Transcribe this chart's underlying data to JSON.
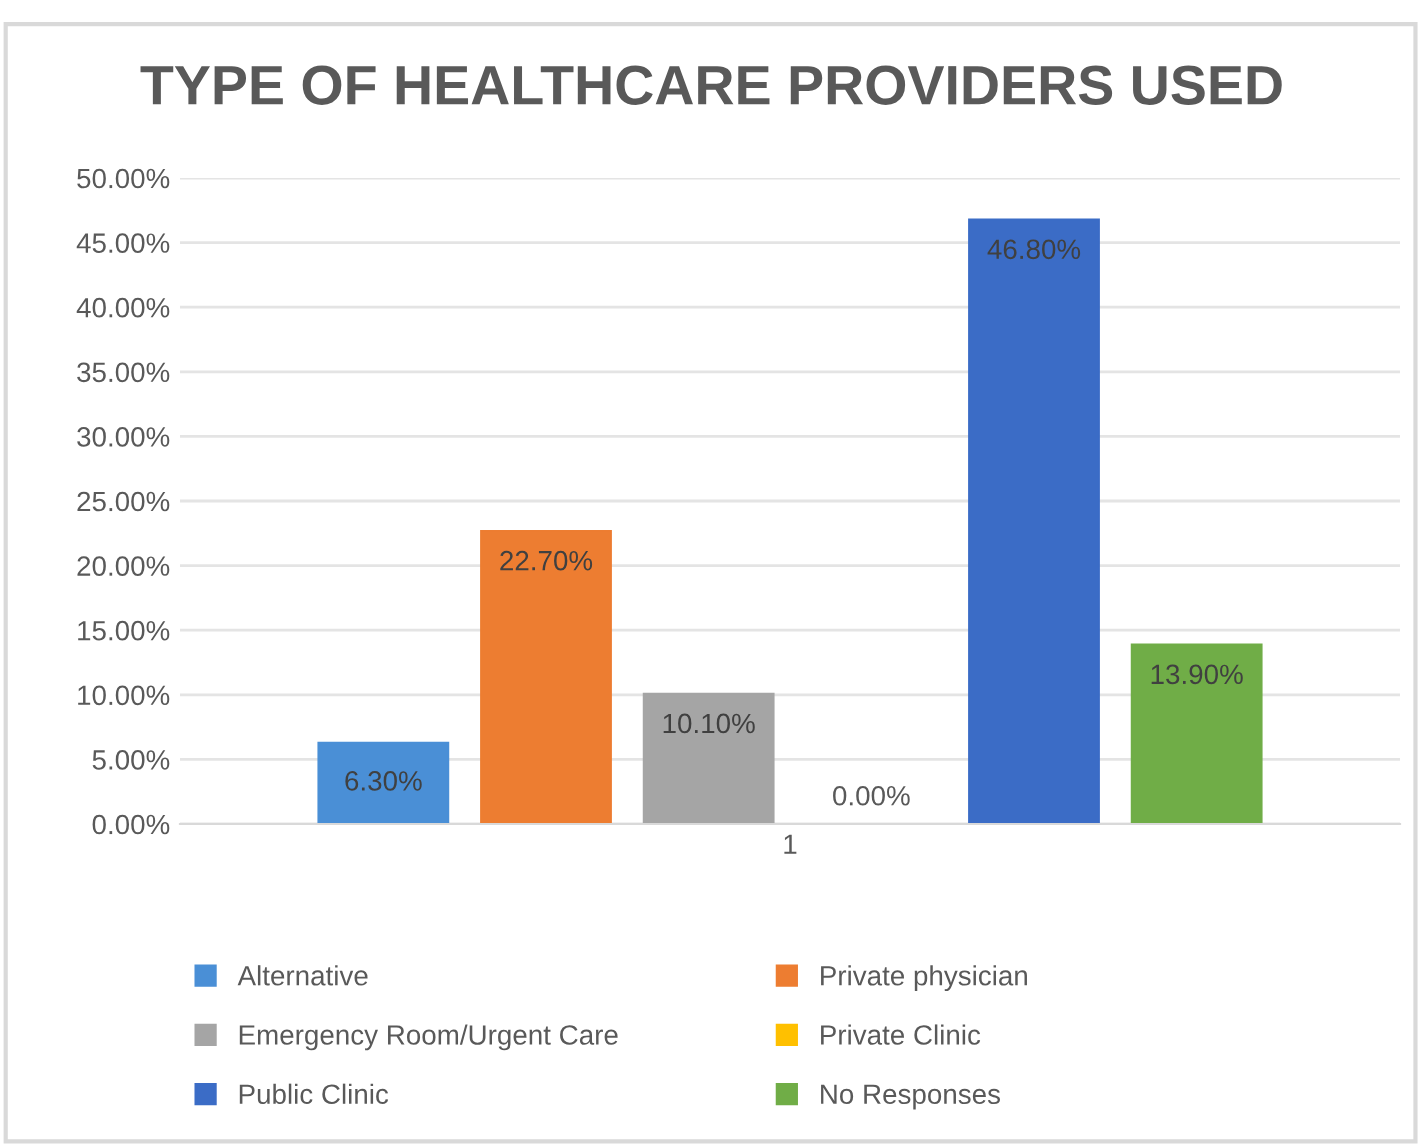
{
  "chart_data": {
    "type": "bar",
    "title": "TYPE OF HEALTHCARE PROVIDERS USED",
    "categories": [
      "1"
    ],
    "series": [
      {
        "name": "Alternative",
        "color": "#4a8fd6",
        "values": [
          6.3
        ],
        "value_labels": [
          "6.30%"
        ]
      },
      {
        "name": "Private physician",
        "color": "#ed7d31",
        "values": [
          22.7
        ],
        "value_labels": [
          "22.70%"
        ]
      },
      {
        "name": "Emergency Room/Urgent Care",
        "color": "#a5a5a5",
        "values": [
          10.1
        ],
        "value_labels": [
          "10.10%"
        ]
      },
      {
        "name": "Private Clinic",
        "color": "#ffc000",
        "values": [
          0
        ],
        "value_labels": [
          "0.00%"
        ]
      },
      {
        "name": "Public Clinic",
        "color": "#3b6cc6",
        "values": [
          46.8
        ],
        "value_labels": [
          "46.80%"
        ]
      },
      {
        "name": "No Responses",
        "color": "#70ad47",
        "values": [
          13.9
        ],
        "value_labels": [
          "13.90%"
        ]
      }
    ],
    "ylim": [
      0,
      50
    ],
    "yticks": [
      {
        "value": 0,
        "label": "0.00%"
      },
      {
        "value": 5,
        "label": "5.00%"
      },
      {
        "value": 10,
        "label": "10.00%"
      },
      {
        "value": 15,
        "label": "15.00%"
      },
      {
        "value": 20,
        "label": "20.00%"
      },
      {
        "value": 25,
        "label": "25.00%"
      },
      {
        "value": 30,
        "label": "30.00%"
      },
      {
        "value": 35,
        "label": "35.00%"
      },
      {
        "value": 40,
        "label": "40.00%"
      },
      {
        "value": 45,
        "label": "45.00%"
      },
      {
        "value": 50,
        "label": "50.00%"
      }
    ],
    "grid": "y",
    "legend": "bottom"
  }
}
